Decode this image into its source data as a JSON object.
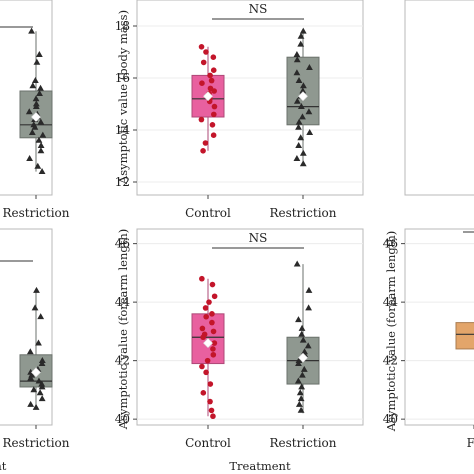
{
  "chart_data": [
    {
      "type": "box",
      "panel": "top-left (partial)",
      "categories": [
        "Restriction"
      ],
      "ylim": [
        11.5,
        19
      ],
      "boxes": [
        {
          "name": "Restriction",
          "color": "#8f9890",
          "marker": "triangle",
          "q1": 13.7,
          "median": 14.2,
          "q3": 15.5,
          "whisker_low": 12.4,
          "whisker_high": 17.8,
          "mean": 14.5,
          "points": [
            17.8,
            16.9,
            16.6,
            15.9,
            15.7,
            15.6,
            15.4,
            15.2,
            15.0,
            14.9,
            14.7,
            14.6,
            14.5,
            14.4,
            14.3,
            14.2,
            14.1,
            13.9,
            13.8,
            13.6,
            13.4,
            13.2,
            12.9,
            12.6,
            12.4
          ]
        }
      ]
    },
    {
      "type": "box",
      "panel": "top-middle",
      "ylabel": "Asymptotic value (body mass)",
      "categories": [
        "Control",
        "Restriction"
      ],
      "yticks": [
        12,
        14,
        16,
        18
      ],
      "ylim": [
        11.5,
        19
      ],
      "annotation": "NS",
      "boxes": [
        {
          "name": "Control",
          "color": "#e8609f",
          "marker": "circle",
          "q1": 14.5,
          "median": 15.2,
          "q3": 16.1,
          "whisker_low": 13.2,
          "whisker_high": 17.2,
          "mean": 15.3,
          "points": [
            17.2,
            17.0,
            16.8,
            16.6,
            16.3,
            16.1,
            15.9,
            15.8,
            15.6,
            15.5,
            15.4,
            15.3,
            15.2,
            15.1,
            14.9,
            14.6,
            14.4,
            14.2,
            13.8,
            13.5,
            13.2
          ]
        },
        {
          "name": "Restriction",
          "color": "#8f9890",
          "marker": "triangle",
          "q1": 14.2,
          "median": 14.9,
          "q3": 16.8,
          "whisker_low": 12.7,
          "whisker_high": 17.8,
          "mean": 15.3,
          "points": [
            17.8,
            17.6,
            17.3,
            16.9,
            16.7,
            16.4,
            16.2,
            15.9,
            15.7,
            15.5,
            15.3,
            15.1,
            14.9,
            14.7,
            14.5,
            14.3,
            14.1,
            13.9,
            13.7,
            13.4,
            13.1,
            12.9,
            12.7
          ]
        }
      ]
    },
    {
      "type": "box",
      "panel": "top-right (partial)",
      "categories": [],
      "boxes": []
    },
    {
      "type": "box",
      "panel": "bottom-left (partial)",
      "categories": [
        "Restriction"
      ],
      "xlabel": "ent",
      "ylim": [
        39.8,
        46.5
      ],
      "boxes": [
        {
          "name": "Restriction",
          "color": "#8f9890",
          "marker": "triangle",
          "q1": 41.1,
          "median": 41.3,
          "q3": 42.2,
          "whisker_low": 40.4,
          "whisker_high": 44.4,
          "mean": 41.6,
          "points": [
            44.4,
            43.8,
            43.5,
            42.6,
            42.3,
            42.0,
            41.9,
            41.7,
            41.6,
            41.5,
            41.4,
            41.3,
            41.2,
            41.1,
            41.0,
            40.9,
            40.7,
            40.5,
            40.4
          ]
        }
      ]
    },
    {
      "type": "box",
      "panel": "bottom-middle",
      "ylabel": "Asymptotic value (forearm length)",
      "xlabel": "Treatment",
      "categories": [
        "Control",
        "Restriction"
      ],
      "yticks": [
        40,
        42,
        44,
        46
      ],
      "ylim": [
        39.8,
        46.5
      ],
      "annotation": "NS",
      "boxes": [
        {
          "name": "Control",
          "color": "#e8609f",
          "marker": "circle",
          "q1": 41.9,
          "median": 42.8,
          "q3": 43.6,
          "whisker_low": 40.1,
          "whisker_high": 44.8,
          "mean": 42.6,
          "points": [
            44.8,
            44.6,
            44.2,
            44.0,
            43.8,
            43.6,
            43.5,
            43.3,
            43.1,
            43.0,
            42.9,
            42.8,
            42.6,
            42.4,
            42.2,
            42.0,
            41.8,
            41.6,
            41.2,
            40.9,
            40.6,
            40.3,
            40.1
          ]
        },
        {
          "name": "Restriction",
          "color": "#8f9890",
          "marker": "triangle",
          "q1": 41.2,
          "median": 42.0,
          "q3": 42.8,
          "whisker_low": 40.2,
          "whisker_high": 45.3,
          "mean": 42.1,
          "points": [
            45.3,
            44.4,
            43.8,
            43.4,
            43.1,
            42.9,
            42.7,
            42.5,
            42.3,
            42.2,
            42.0,
            41.9,
            41.7,
            41.5,
            41.3,
            41.1,
            40.9,
            40.7,
            40.5,
            40.3
          ]
        }
      ]
    },
    {
      "type": "box",
      "panel": "bottom-right (partial)",
      "ylabel": "Asymptotic value (forearm length)",
      "categories": [
        "Fe"
      ],
      "yticks": [
        40,
        42,
        44,
        46
      ],
      "ylim": [
        39.8,
        46.5
      ],
      "boxes": [
        {
          "name": "Fe",
          "color": "#e3a56a",
          "marker": "none",
          "q1": 42.4,
          "median": 42.9,
          "q3": 43.3,
          "whisker_low": 42.4,
          "whisker_high": 43.3,
          "mean": null,
          "points": []
        }
      ]
    }
  ]
}
